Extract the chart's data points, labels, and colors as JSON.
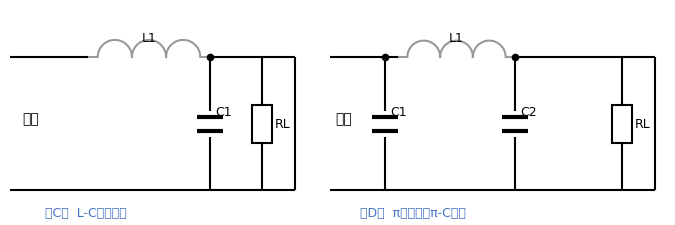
{
  "bg_color": "#ffffff",
  "line_color": "#000000",
  "inductor_color": "#999999",
  "label_color": "#4472c4",
  "text_color": "#000000",
  "label_C": "（C）  L-C电感滤波",
  "label_D": "（D）  π型滤波或π-C滤波",
  "input_text": "输入",
  "L1_text": "L1",
  "C1_text": "C1",
  "C2_text": "C2",
  "RL_text": "RL",
  "figsize": [
    6.75,
    2.26
  ],
  "dpi": 100
}
